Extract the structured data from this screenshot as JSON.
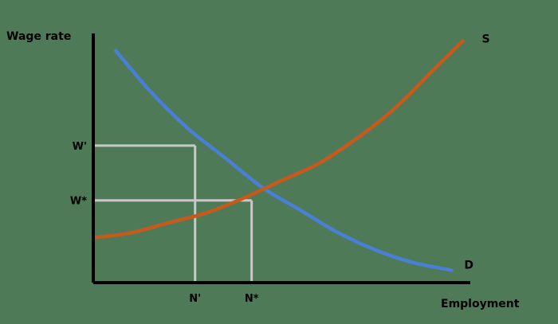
{
  "chart_data": {
    "type": "line",
    "title": "",
    "ylabel": "Wage rate",
    "xlabel": "Employment",
    "xlim": [
      0,
      10
    ],
    "ylim": [
      0,
      10
    ],
    "grid": false,
    "legend": "none",
    "series": [
      {
        "name": "D",
        "color": "#4a7fd6",
        "x": [
          0.6,
          1.5,
          2.5,
          3.5,
          4.5,
          5.5,
          6.5,
          7.5,
          8.5,
          9.5
        ],
        "y": [
          9.3,
          7.7,
          6.2,
          5.0,
          3.8,
          2.9,
          2.0,
          1.3,
          0.8,
          0.5
        ]
      },
      {
        "name": "S",
        "color": "#c65a1c",
        "x": [
          0.0,
          1.0,
          2.0,
          3.0,
          4.0,
          5.0,
          6.0,
          7.0,
          8.0,
          9.0,
          9.8
        ],
        "y": [
          1.8,
          2.0,
          2.4,
          2.8,
          3.4,
          4.1,
          4.8,
          5.8,
          7.0,
          8.5,
          9.7
        ]
      }
    ],
    "guides": [
      {
        "x": 2.7,
        "y": 5.5,
        "x_tick": "N'",
        "y_tick": "W'",
        "color": "#c8c8c8"
      },
      {
        "x": 4.2,
        "y": 3.3,
        "x_tick": "N*",
        "y_tick": "W*",
        "color": "#c8c8c8"
      }
    ]
  }
}
